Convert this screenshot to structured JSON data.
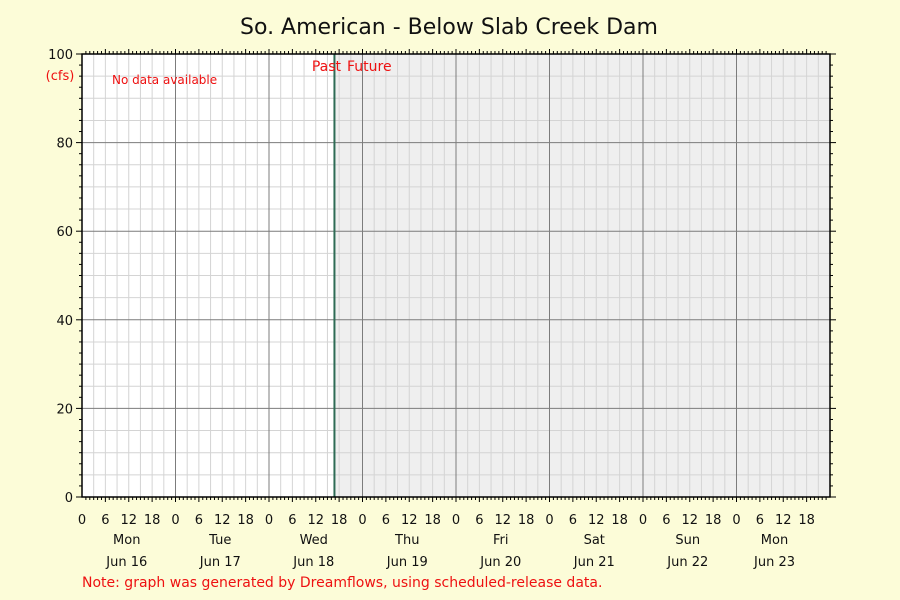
{
  "chart_data": {
    "type": "line",
    "title": "So. American - Below Slab Creek Dam",
    "ylabel": "(cfs)",
    "ylim": [
      0,
      100
    ],
    "yticks": [
      0,
      20,
      40,
      60,
      80,
      100
    ],
    "x_hour_labels": [
      "0",
      "6",
      "12",
      "18",
      "0",
      "6",
      "12",
      "18",
      "0",
      "6",
      "12",
      "18",
      "0",
      "6",
      "12",
      "18",
      "0",
      "6",
      "12",
      "18",
      "0",
      "6",
      "12",
      "18",
      "0",
      "6",
      "12",
      "18",
      "0",
      "6",
      "12",
      "18"
    ],
    "days": [
      {
        "weekday": "Mon",
        "date": "Jun 16"
      },
      {
        "weekday": "Tue",
        "date": "Jun 17"
      },
      {
        "weekday": "Wed",
        "date": "Jun 18"
      },
      {
        "weekday": "Thu",
        "date": "Jun 19"
      },
      {
        "weekday": "Fri",
        "date": "Jun 20"
      },
      {
        "weekday": "Sat",
        "date": "Jun 21"
      },
      {
        "weekday": "Sun",
        "date": "Jun 22"
      },
      {
        "weekday": "Mon",
        "date": "Jun 23"
      }
    ],
    "now_day_index": 2.7,
    "past_label": "Past",
    "future_label": "Future",
    "no_data_text": "No data available",
    "series": [],
    "grid": true,
    "note": "Note: graph was generated by Dreamflows, using scheduled-release data.",
    "colors": {
      "background": "#fcfcd8",
      "plot_past": "#ffffff",
      "plot_future": "#efefef",
      "grid_minor": "#d4d4d4",
      "grid_major": "#7c7c7c",
      "now_line": "#2e6b55",
      "annotation": "#ee1111"
    }
  }
}
